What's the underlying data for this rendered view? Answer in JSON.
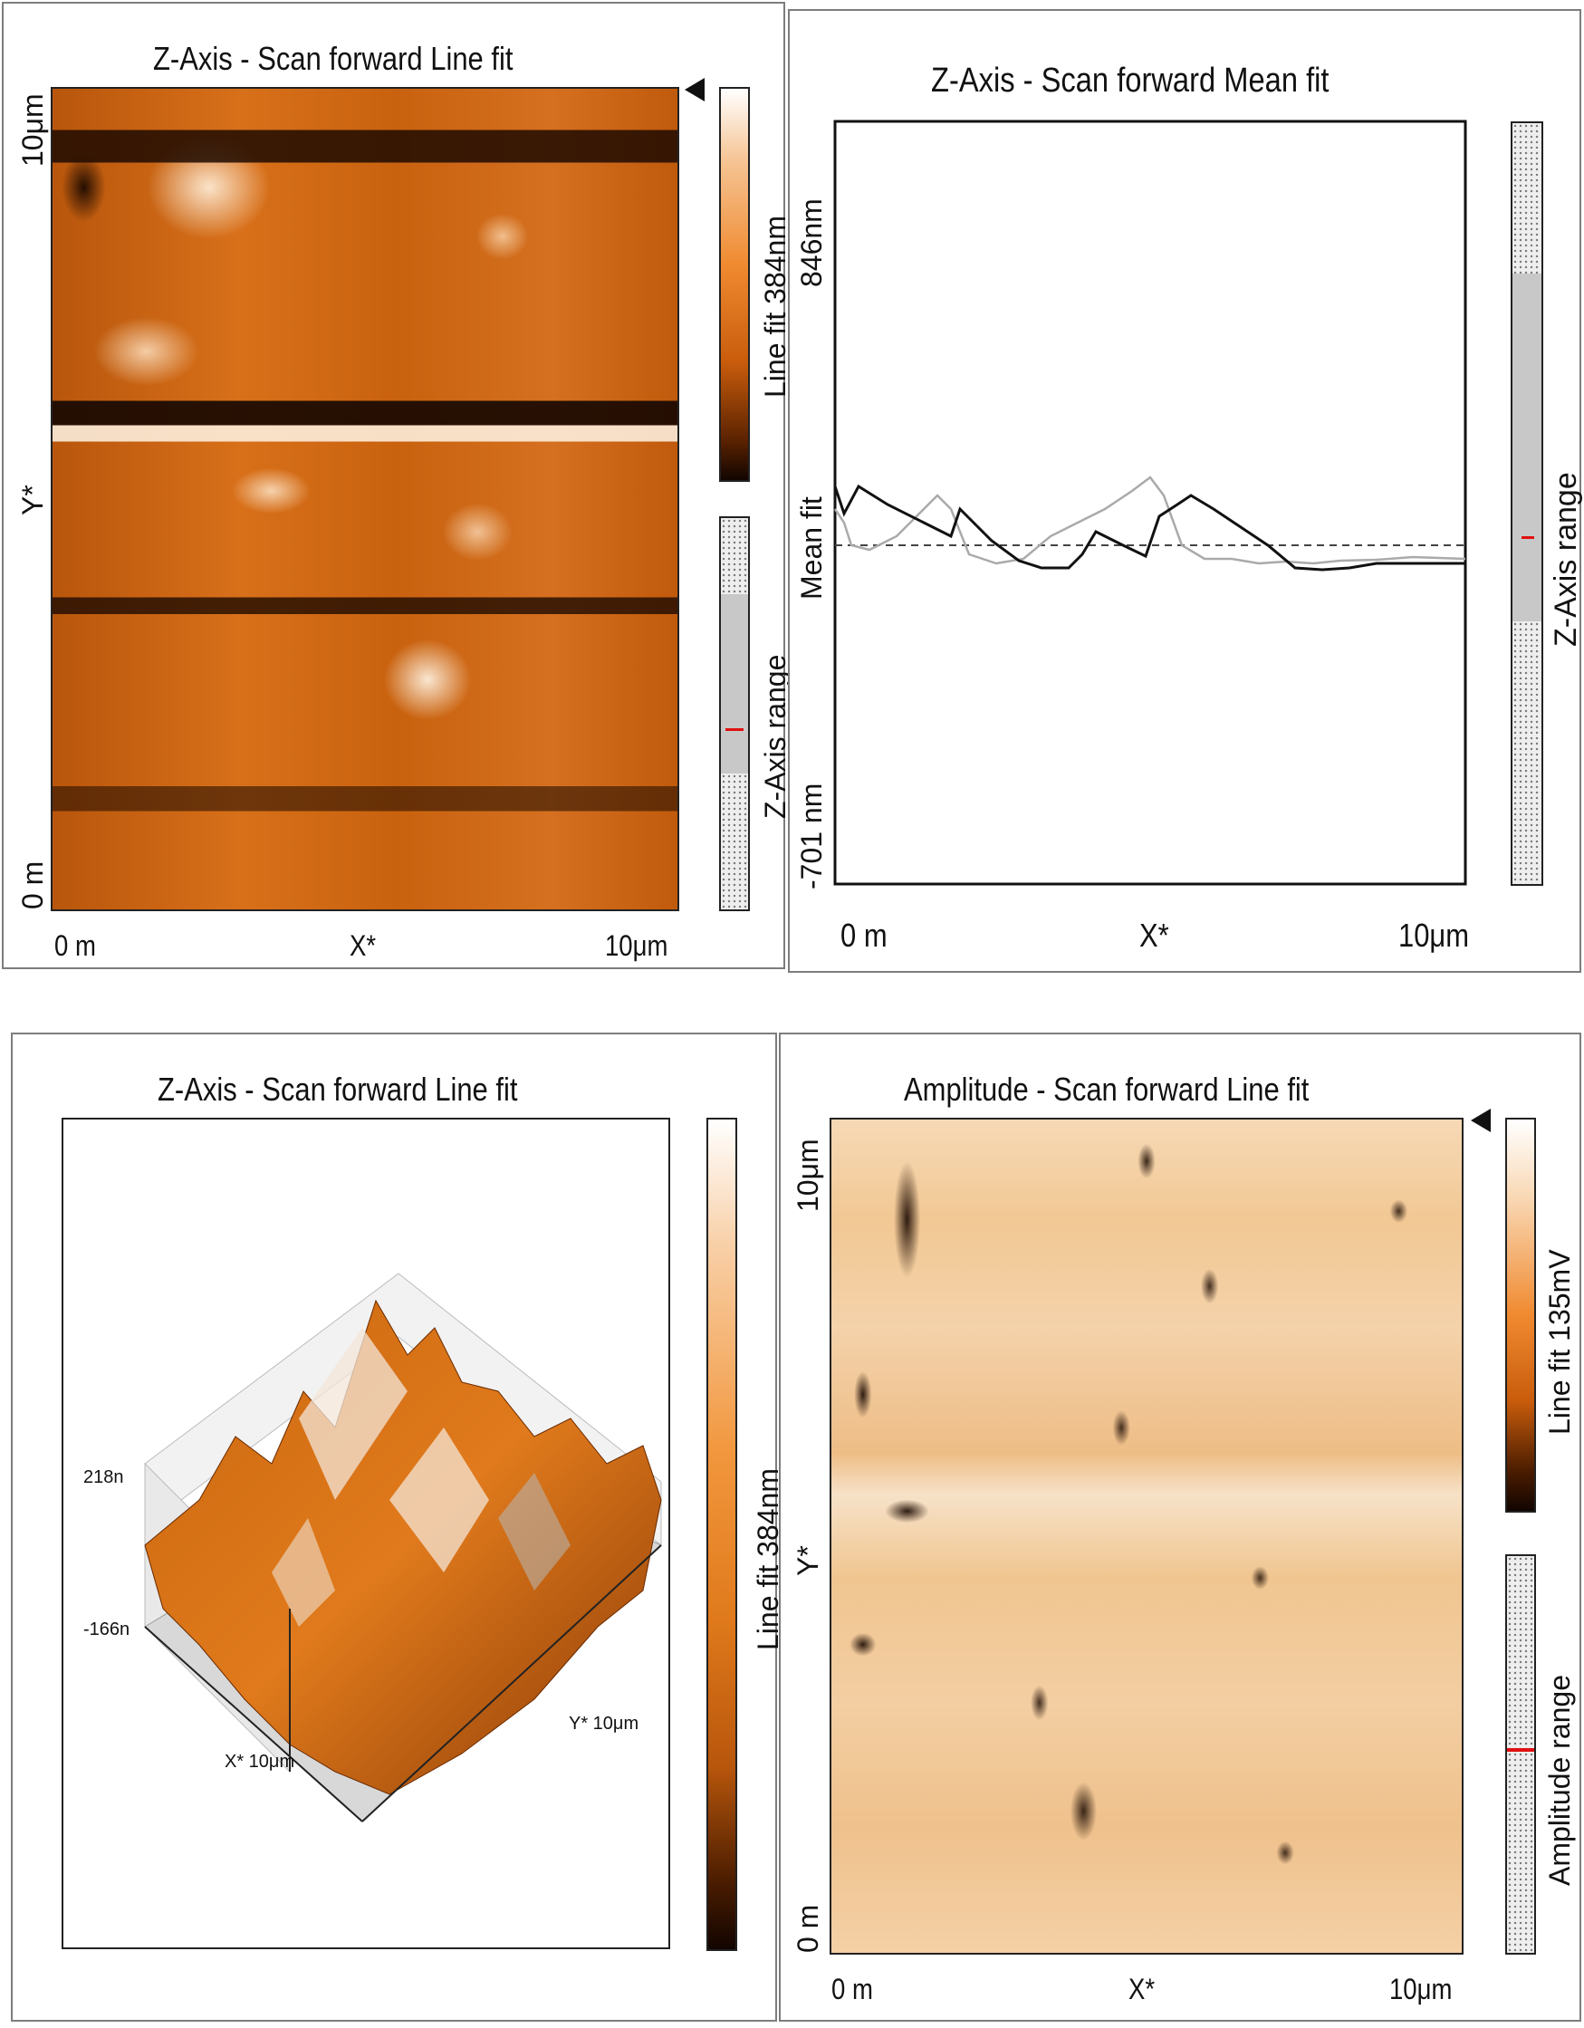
{
  "panels": {
    "top_left": {
      "title": "Z-Axis - Scan forward   Line fit",
      "y_top": "10μm",
      "y_mid": "Y*",
      "y_bottom": "0 m",
      "x_left": "0 m",
      "x_mid": "X*",
      "x_right": "10μm",
      "colorbar_label": "Line fit 384nm",
      "range_label": "Z-Axis range"
    },
    "top_right": {
      "title": "Z-Axis - Scan forward   Mean fit",
      "y_top": "846nm",
      "y_mid": "Mean fit",
      "y_bottom": "-701 nm",
      "x_left": "0 m",
      "x_mid": "X*",
      "x_right": "10μm",
      "range_label": "Z-Axis range"
    },
    "bottom_left": {
      "title": "Z-Axis - Scan forward   Line fit",
      "z_top": "218n",
      "z_bottom": "-166n",
      "x_axis": "X* 10μm",
      "y_axis": "Y* 10μm",
      "colorbar_label": "Line fit 384nm"
    },
    "bottom_right": {
      "title": "Amplitude - Scan forward   Line fit",
      "y_top": "10μm",
      "y_mid": "Y*",
      "y_bottom": "0 m",
      "x_left": "0 m",
      "x_mid": "X*",
      "x_right": "10μm",
      "colorbar_label": "Line fit 135mV",
      "range_label": "Amplitude range"
    }
  },
  "colors": {
    "afm_dark": "#2a0f00",
    "afm_mid": "#d9690f",
    "afm_light": "#fff4e8",
    "amp_base": "#f0c08a",
    "range_marker": "#e01010"
  }
}
